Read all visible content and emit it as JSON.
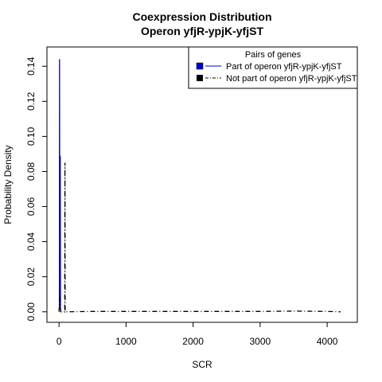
{
  "chart_data": {
    "type": "line",
    "title_line1": "Coexpression Distribution",
    "title_line2": "Operon yfjR-ypjK-yfjST",
    "xlabel": "SCR",
    "ylabel": "Probability Density",
    "xlim": [
      -180,
      4450
    ],
    "ylim": [
      -0.006,
      0.151
    ],
    "x_ticks": [
      0,
      1000,
      2000,
      3000,
      4000
    ],
    "y_ticks": [
      0.0,
      0.02,
      0.04,
      0.06,
      0.08,
      0.1,
      0.12,
      0.14
    ],
    "x_tick_labels": [
      "0",
      "1000",
      "2000",
      "3000",
      "4000"
    ],
    "y_tick_labels": [
      "0.00",
      "0.02",
      "0.04",
      "0.06",
      "0.08",
      "0.10",
      "0.12",
      "0.14"
    ],
    "legend": {
      "title": "Pairs of genes",
      "position": "top-right",
      "entries": [
        "Part of operon yfjR-ypjK-yfjST",
        "Not part of operon yfjR-ypjK-yfjST"
      ]
    },
    "series": [
      {
        "name": "Part of operon yfjR-ypjK-yfjST",
        "color": "#0000cc",
        "style": "solid",
        "x": [
          5,
          8,
          12,
          15,
          18,
          22,
          26,
          30
        ],
        "y": [
          0.003,
          0.144,
          0.002,
          0.089,
          0.088,
          0.001,
          0.0,
          0.0
        ]
      },
      {
        "name": "Not part of operon yfjR-ypjK-yfjST",
        "color": "#000000",
        "style": "dashdot",
        "x": [
          0,
          10,
          20,
          30,
          60,
          85,
          88,
          92,
          100,
          500,
          1000,
          2000,
          3000,
          3500,
          4000,
          4200
        ],
        "y": [
          0.0,
          0.01,
          0.002,
          0.0,
          0.0,
          0.0,
          0.085,
          0.0,
          0.0,
          0.0002,
          0.0002,
          0.0002,
          0.0002,
          0.0004,
          0.0002,
          0.0
        ]
      }
    ]
  }
}
